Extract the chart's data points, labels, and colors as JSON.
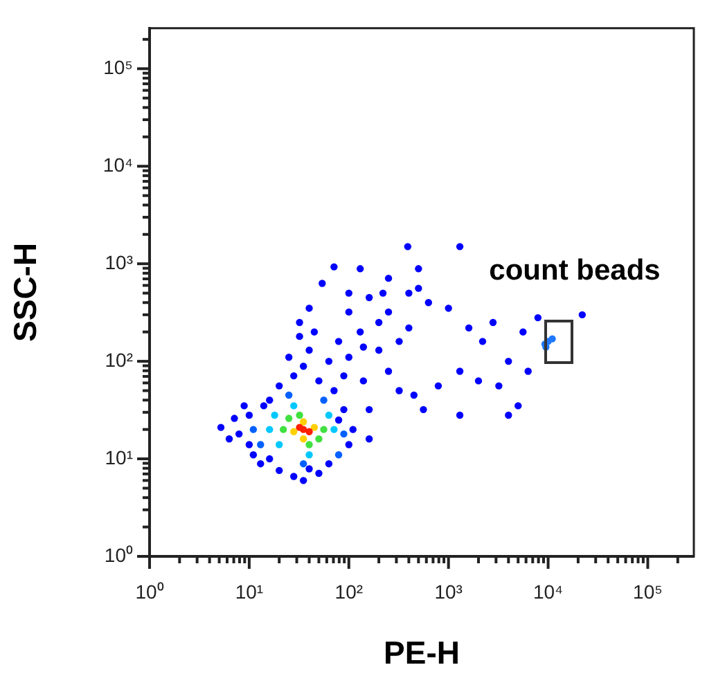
{
  "chart_data": {
    "type": "scatter",
    "xlabel": "PE-H",
    "ylabel": "SSC-H",
    "log": "xy",
    "grid": false,
    "legend": false,
    "marker": "circle",
    "annotations": [
      "count beads"
    ],
    "xlim": [
      1,
      290000
    ],
    "ylim": [
      1,
      260000
    ],
    "xticks": [
      {
        "value": 1,
        "label": "10⁰"
      },
      {
        "value": 2,
        "label": null
      },
      {
        "value": 3,
        "label": null
      },
      {
        "value": 4,
        "label": null
      },
      {
        "value": 5,
        "label": null
      },
      {
        "value": 6,
        "label": null
      },
      {
        "value": 7,
        "label": null
      },
      {
        "value": 8,
        "label": null
      },
      {
        "value": 9,
        "label": null
      },
      {
        "value": 10,
        "label": "10¹"
      },
      {
        "value": 20,
        "label": null
      },
      {
        "value": 30,
        "label": null
      },
      {
        "value": 40,
        "label": null
      },
      {
        "value": 50,
        "label": null
      },
      {
        "value": 60,
        "label": null
      },
      {
        "value": 70,
        "label": null
      },
      {
        "value": 80,
        "label": null
      },
      {
        "value": 90,
        "label": null
      },
      {
        "value": 100,
        "label": "10²"
      },
      {
        "value": 200,
        "label": null
      },
      {
        "value": 300,
        "label": null
      },
      {
        "value": 400,
        "label": null
      },
      {
        "value": 500,
        "label": null
      },
      {
        "value": 600,
        "label": null
      },
      {
        "value": 700,
        "label": null
      },
      {
        "value": 800,
        "label": null
      },
      {
        "value": 900,
        "label": null
      },
      {
        "value": 1000,
        "label": "10³"
      },
      {
        "value": 2000,
        "label": null
      },
      {
        "value": 3000,
        "label": null
      },
      {
        "value": 4000,
        "label": null
      },
      {
        "value": 5000,
        "label": null
      },
      {
        "value": 6000,
        "label": null
      },
      {
        "value": 7000,
        "label": null
      },
      {
        "value": 8000,
        "label": null
      },
      {
        "value": 9000,
        "label": null
      },
      {
        "value": 10000,
        "label": "10⁴"
      },
      {
        "value": 20000,
        "label": null
      },
      {
        "value": 30000,
        "label": null
      },
      {
        "value": 40000,
        "label": null
      },
      {
        "value": 50000,
        "label": null
      },
      {
        "value": 60000,
        "label": null
      },
      {
        "value": 70000,
        "label": null
      },
      {
        "value": 80000,
        "label": null
      },
      {
        "value": 90000,
        "label": null
      },
      {
        "value": 100000,
        "label": "10⁵"
      },
      {
        "value": 200000,
        "label": null
      }
    ],
    "yticks": [
      {
        "value": 1,
        "label": "10⁰"
      },
      {
        "value": 2,
        "label": null
      },
      {
        "value": 3,
        "label": null
      },
      {
        "value": 4,
        "label": null
      },
      {
        "value": 5,
        "label": null
      },
      {
        "value": 6,
        "label": null
      },
      {
        "value": 7,
        "label": null
      },
      {
        "value": 8,
        "label": null
      },
      {
        "value": 9,
        "label": null
      },
      {
        "value": 10,
        "label": "10¹"
      },
      {
        "value": 20,
        "label": null
      },
      {
        "value": 30,
        "label": null
      },
      {
        "value": 40,
        "label": null
      },
      {
        "value": 50,
        "label": null
      },
      {
        "value": 60,
        "label": null
      },
      {
        "value": 70,
        "label": null
      },
      {
        "value": 80,
        "label": null
      },
      {
        "value": 90,
        "label": null
      },
      {
        "value": 100,
        "label": "10²"
      },
      {
        "value": 200,
        "label": null
      },
      {
        "value": 300,
        "label": null
      },
      {
        "value": 400,
        "label": null
      },
      {
        "value": 500,
        "label": null
      },
      {
        "value": 600,
        "label": null
      },
      {
        "value": 700,
        "label": null
      },
      {
        "value": 800,
        "label": null
      },
      {
        "value": 900,
        "label": null
      },
      {
        "value": 1000,
        "label": "10³"
      },
      {
        "value": 2000,
        "label": null
      },
      {
        "value": 3000,
        "label": null
      },
      {
        "value": 4000,
        "label": null
      },
      {
        "value": 5000,
        "label": null
      },
      {
        "value": 6000,
        "label": null
      },
      {
        "value": 7000,
        "label": null
      },
      {
        "value": 8000,
        "label": null
      },
      {
        "value": 9000,
        "label": null
      },
      {
        "value": 10000,
        "label": "10⁴"
      },
      {
        "value": 20000,
        "label": null
      },
      {
        "value": 30000,
        "label": null
      },
      {
        "value": 40000,
        "label": null
      },
      {
        "value": 50000,
        "label": null
      },
      {
        "value": 60000,
        "label": null
      },
      {
        "value": 70000,
        "label": null
      },
      {
        "value": 80000,
        "label": null
      },
      {
        "value": 90000,
        "label": null
      },
      {
        "value": 100000,
        "label": "10⁵"
      },
      {
        "value": 200000,
        "label": null
      }
    ],
    "series": [
      {
        "x": [
          5.2,
          7.1,
          7.9,
          10,
          10,
          11,
          16,
          20,
          28,
          35,
          50,
          63,
          100,
          110,
          89,
          160,
          14,
          8.9,
          20,
          28,
          35,
          40,
          50,
          63,
          71,
          25,
          32,
          89,
          100,
          45,
          54,
          71,
          130,
          250,
          390,
          100,
          160,
          200,
          130,
          250,
          400,
          500,
          630,
          320,
          200,
          400,
          79,
          140,
          100,
          220,
          500,
          40,
          32,
          160,
          140,
          250,
          320,
          1300,
          1000,
          1600,
          2200,
          1300,
          790,
          2000,
          4000,
          6300,
          3200,
          5000,
          4000,
          1300,
          450,
          560,
          5600,
          2800,
          7900,
          22000,
          13,
          40,
          79,
          6.3,
          16,
          11,
          89,
          35,
          25,
          56,
          13,
          79,
          9300,
          10000,
          9500,
          11000,
          16,
          71,
          28,
          40,
          20,
          63,
          18,
          22,
          56,
          32,
          40,
          25,
          50,
          28,
          45,
          35,
          35,
          35,
          32,
          40
        ],
        "values": [
          21,
          26,
          18,
          28,
          14,
          11,
          10,
          7.6,
          6.6,
          6.0,
          7.1,
          8.9,
          14,
          20,
          32,
          16,
          35,
          35,
          56,
          71,
          89,
          130,
          63,
          100,
          50,
          110,
          180,
          71,
          110,
          200,
          630,
          930,
          890,
          710,
          1500,
          320,
          450,
          250,
          200,
          320,
          500,
          890,
          400,
          160,
          130,
          220,
          160,
          140,
          500,
          500,
          560,
          350,
          250,
          32,
          63,
          79,
          50,
          1500,
          350,
          220,
          160,
          79,
          56,
          63,
          100,
          79,
          56,
          35,
          28,
          28,
          45,
          32,
          200,
          250,
          280,
          300,
          8.9,
          7.9,
          25,
          16,
          40,
          20,
          18,
          8.9,
          45,
          40,
          14,
          11,
          150,
          160,
          140,
          170,
          20,
          20,
          35,
          11,
          14,
          28,
          28,
          20,
          20,
          28,
          14,
          26,
          16,
          19,
          21,
          24,
          16,
          20,
          21,
          19
        ],
        "colors": [
          "#0000ff",
          "#0000ff",
          "#0000ff",
          "#0000ff",
          "#0000ff",
          "#0000ff",
          "#0000ff",
          "#0000ff",
          "#0000ff",
          "#0000ff",
          "#0000ff",
          "#0000ff",
          "#0000ff",
          "#0000ff",
          "#0000ff",
          "#0000ff",
          "#0000ff",
          "#0000ff",
          "#0000ff",
          "#0000ff",
          "#0000ff",
          "#0000ff",
          "#0000ff",
          "#0000ff",
          "#0000ff",
          "#0000ff",
          "#0000ff",
          "#0000ff",
          "#0000ff",
          "#0000ff",
          "#0000ff",
          "#0000ff",
          "#0000ff",
          "#0000ff",
          "#0000ff",
          "#0000ff",
          "#0000ff",
          "#0000ff",
          "#0000ff",
          "#0000ff",
          "#0000ff",
          "#0000ff",
          "#0000ff",
          "#0000ff",
          "#0000ff",
          "#0000ff",
          "#0000ff",
          "#0000ff",
          "#0000ff",
          "#0000ff",
          "#0000ff",
          "#0000ff",
          "#0000ff",
          "#0000ff",
          "#0000ff",
          "#0000ff",
          "#0000ff",
          "#0000ff",
          "#0000ff",
          "#0000ff",
          "#0000ff",
          "#0000ff",
          "#0000ff",
          "#0000ff",
          "#0000ff",
          "#0000ff",
          "#0000ff",
          "#0000ff",
          "#0000ff",
          "#0000ff",
          "#0000ff",
          "#0000ff",
          "#0000ff",
          "#0000ff",
          "#0000ff",
          "#0000ff",
          "#0000ff",
          "#0000ff",
          "#0000ff",
          "#0000ff",
          "#0000ff",
          "#0060ff",
          "#0060ff",
          "#0060ff",
          "#0060ff",
          "#0060ff",
          "#0060ff",
          "#0060ff",
          "#1e78ff",
          "#1e78ff",
          "#1e78ff",
          "#1e78ff",
          "#00c8ff",
          "#00c8ff",
          "#00c8ff",
          "#00c8ff",
          "#00c8ff",
          "#00c8ff",
          "#00c8ff",
          "#40e040",
          "#40e040",
          "#40e040",
          "#40e040",
          "#40e040",
          "#40e040",
          "#ffd000",
          "#ffd000",
          "#ffd000",
          "#ffd000",
          "#ff2000",
          "#ff2000",
          "#ff2000"
        ]
      }
    ]
  }
}
